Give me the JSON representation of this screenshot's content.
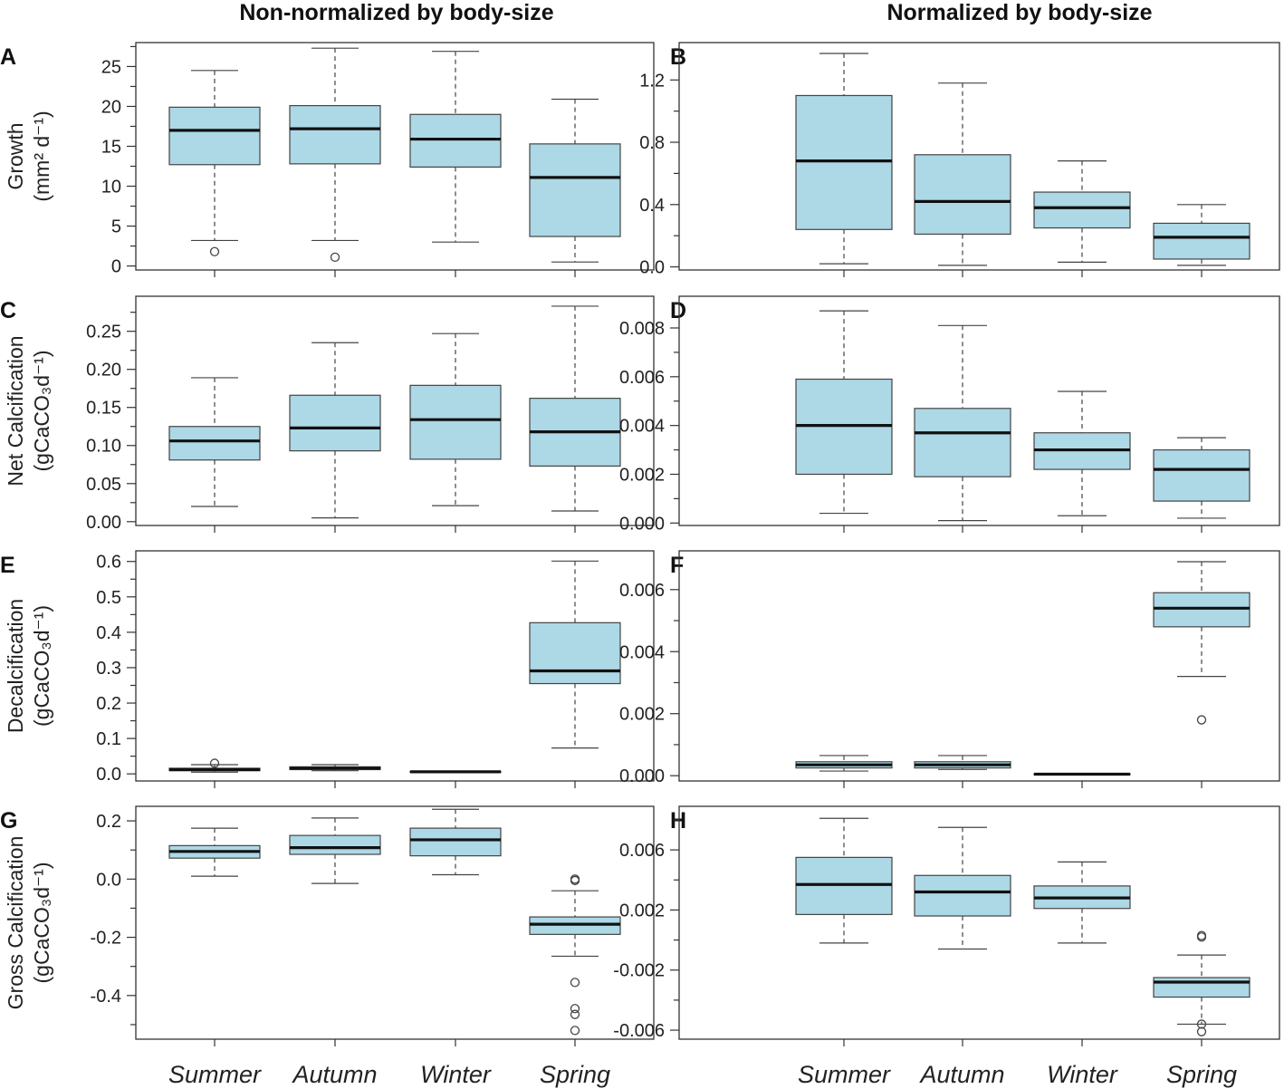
{
  "figure": {
    "col_titles": [
      "Non-normalized by body-size",
      "Normalized by body-size"
    ],
    "box_color": "#add8e6",
    "categories": [
      "Summer",
      "Autumn",
      "Winter",
      "Spring"
    ]
  },
  "chart_data": [
    {
      "type": "box",
      "panel": "A",
      "ylabel": "Growth",
      "ylabel_unit": "(mm² d⁻¹)",
      "ylim": [
        -0.5,
        28
      ],
      "yticks": [
        {
          "v": 0,
          "t": "0"
        },
        {
          "v": 5,
          "t": "5"
        },
        {
          "v": 10,
          "t": "10"
        },
        {
          "v": 15,
          "t": "15"
        },
        {
          "v": 20,
          "t": "20"
        },
        {
          "v": 25,
          "t": "25"
        }
      ],
      "boxes": [
        {
          "min": 3.2,
          "q1": 12.7,
          "median": 17.0,
          "q3": 19.9,
          "max": 24.5,
          "outliers": [
            1.8
          ]
        },
        {
          "min": 3.2,
          "q1": 12.8,
          "median": 17.2,
          "q3": 20.1,
          "max": 27.3,
          "outliers": [
            1.1
          ]
        },
        {
          "min": 3.0,
          "q1": 12.4,
          "median": 15.9,
          "q3": 19.0,
          "max": 26.9,
          "outliers": []
        },
        {
          "min": 0.5,
          "q1": 3.7,
          "median": 11.1,
          "q3": 15.3,
          "max": 20.9,
          "outliers": []
        }
      ]
    },
    {
      "type": "box",
      "panel": "B",
      "ylabel": "",
      "ylabel_unit": "",
      "ylim": [
        -0.02,
        1.44
      ],
      "yticks": [
        {
          "v": 0,
          "t": "0.0"
        },
        {
          "v": 0.4,
          "t": "0.4"
        },
        {
          "v": 0.8,
          "t": "0.8"
        },
        {
          "v": 1.2,
          "t": "1.2"
        }
      ],
      "boxes": [
        {
          "min": 0.02,
          "q1": 0.24,
          "median": 0.68,
          "q3": 1.1,
          "max": 1.37,
          "outliers": []
        },
        {
          "min": 0.01,
          "q1": 0.21,
          "median": 0.42,
          "q3": 0.72,
          "max": 1.18,
          "outliers": []
        },
        {
          "min": 0.03,
          "q1": 0.25,
          "median": 0.38,
          "q3": 0.48,
          "max": 0.68,
          "outliers": []
        },
        {
          "min": 0.01,
          "q1": 0.05,
          "median": 0.19,
          "q3": 0.28,
          "max": 0.4,
          "outliers": []
        }
      ]
    },
    {
      "type": "box",
      "panel": "C",
      "ylabel": "Net Calcification",
      "ylabel_unit": "(gCaCO₃d⁻¹)",
      "ylim": [
        -0.005,
        0.296
      ],
      "yticks": [
        {
          "v": 0,
          "t": "0.00"
        },
        {
          "v": 0.05,
          "t": "0.05"
        },
        {
          "v": 0.1,
          "t": "0.10"
        },
        {
          "v": 0.15,
          "t": "0.15"
        },
        {
          "v": 0.2,
          "t": "0.20"
        },
        {
          "v": 0.25,
          "t": "0.25"
        }
      ],
      "boxes": [
        {
          "min": 0.02,
          "q1": 0.081,
          "median": 0.106,
          "q3": 0.125,
          "max": 0.189,
          "outliers": []
        },
        {
          "min": 0.005,
          "q1": 0.093,
          "median": 0.123,
          "q3": 0.166,
          "max": 0.235,
          "outliers": []
        },
        {
          "min": 0.021,
          "q1": 0.082,
          "median": 0.134,
          "q3": 0.179,
          "max": 0.247,
          "outliers": []
        },
        {
          "min": 0.014,
          "q1": 0.073,
          "median": 0.118,
          "q3": 0.162,
          "max": 0.283,
          "outliers": []
        }
      ]
    },
    {
      "type": "box",
      "panel": "D",
      "ylabel": "",
      "ylabel_unit": "",
      "ylim": [
        -0.0001,
        0.0093
      ],
      "yticks": [
        {
          "v": 0,
          "t": "0.000"
        },
        {
          "v": 0.002,
          "t": "0.002"
        },
        {
          "v": 0.004,
          "t": "0.004"
        },
        {
          "v": 0.006,
          "t": "0.006"
        },
        {
          "v": 0.008,
          "t": "0.008"
        }
      ],
      "boxes": [
        {
          "min": 0.0004,
          "q1": 0.002,
          "median": 0.004,
          "q3": 0.0059,
          "max": 0.0087,
          "outliers": []
        },
        {
          "min": 0.0001,
          "q1": 0.0019,
          "median": 0.0037,
          "q3": 0.0047,
          "max": 0.0081,
          "outliers": []
        },
        {
          "min": 0.0003,
          "q1": 0.0022,
          "median": 0.003,
          "q3": 0.0037,
          "max": 0.0054,
          "outliers": []
        },
        {
          "min": 0.0002,
          "q1": 0.0009,
          "median": 0.0022,
          "q3": 0.003,
          "max": 0.0035,
          "outliers": []
        }
      ]
    },
    {
      "type": "box",
      "panel": "E",
      "ylabel": "Decalcification",
      "ylabel_unit": "(gCaCO₃d⁻¹)",
      "ylim": [
        -0.02,
        0.63
      ],
      "yticks": [
        {
          "v": 0,
          "t": "0.0"
        },
        {
          "v": 0.1,
          "t": "0.1"
        },
        {
          "v": 0.2,
          "t": "0.2"
        },
        {
          "v": 0.3,
          "t": "0.3"
        },
        {
          "v": 0.4,
          "t": "0.4"
        },
        {
          "v": 0.5,
          "t": "0.5"
        },
        {
          "v": 0.6,
          "t": "0.6"
        }
      ],
      "boxes": [
        {
          "min": 0.005,
          "q1": 0.009,
          "median": 0.012,
          "q3": 0.016,
          "max": 0.026,
          "outliers": [
            0.03
          ]
        },
        {
          "min": 0.009,
          "q1": 0.012,
          "median": 0.016,
          "q3": 0.02,
          "max": 0.026,
          "outliers": []
        },
        {
          "min": 0.004,
          "q1": 0.005,
          "median": 0.006,
          "q3": 0.007,
          "max": 0.008,
          "outliers": []
        },
        {
          "min": 0.073,
          "q1": 0.255,
          "median": 0.291,
          "q3": 0.427,
          "max": 0.601,
          "outliers": []
        }
      ]
    },
    {
      "type": "box",
      "panel": "F",
      "ylabel": "",
      "ylabel_unit": "",
      "ylim": [
        -0.00017,
        0.00725
      ],
      "yticks": [
        {
          "v": 0,
          "t": "0.000"
        },
        {
          "v": 0.002,
          "t": "0.002"
        },
        {
          "v": 0.004,
          "t": "0.004"
        },
        {
          "v": 0.006,
          "t": "0.006"
        }
      ],
      "boxes": [
        {
          "min": 0.00015,
          "q1": 0.00025,
          "median": 0.00035,
          "q3": 0.00045,
          "max": 0.00065,
          "outliers": []
        },
        {
          "min": 0.0002,
          "q1": 0.00025,
          "median": 0.00035,
          "q3": 0.00045,
          "max": 0.00065,
          "outliers": []
        },
        {
          "min": 3e-05,
          "q1": 4e-05,
          "median": 5e-05,
          "q3": 6e-05,
          "max": 7e-05,
          "outliers": []
        },
        {
          "min": 0.0032,
          "q1": 0.0048,
          "median": 0.0054,
          "q3": 0.0059,
          "max": 0.0069,
          "outliers": [
            0.0018
          ]
        }
      ]
    },
    {
      "type": "box",
      "panel": "G",
      "ylabel": "Gross Calcification",
      "ylabel_unit": "(gCaCO₃d⁻¹)",
      "ylim": [
        -0.55,
        0.25
      ],
      "yticks": [
        {
          "v": -0.4,
          "t": "-0.4"
        },
        {
          "v": -0.2,
          "t": "-0.2"
        },
        {
          "v": 0,
          "t": "0.0"
        },
        {
          "v": 0.2,
          "t": "0.2"
        }
      ],
      "boxes": [
        {
          "min": 0.01,
          "q1": 0.072,
          "median": 0.095,
          "q3": 0.115,
          "max": 0.175,
          "outliers": []
        },
        {
          "min": -0.015,
          "q1": 0.085,
          "median": 0.108,
          "q3": 0.15,
          "max": 0.21,
          "outliers": []
        },
        {
          "min": 0.015,
          "q1": 0.08,
          "median": 0.135,
          "q3": 0.175,
          "max": 0.24,
          "outliers": []
        },
        {
          "min": -0.265,
          "q1": -0.19,
          "median": -0.155,
          "q3": -0.13,
          "max": -0.04,
          "outliers": [
            0.0,
            -0.005,
            -0.355,
            -0.445,
            -0.465,
            -0.52
          ]
        }
      ]
    },
    {
      "type": "box",
      "panel": "H",
      "ylabel": "",
      "ylabel_unit": "",
      "ylim": [
        -0.0066,
        0.0089
      ],
      "yticks": [
        {
          "v": -0.006,
          "t": "-0.006"
        },
        {
          "v": -0.002,
          "t": "-0.002"
        },
        {
          "v": 0.002,
          "t": "0.002"
        },
        {
          "v": 0.006,
          "t": "0.006"
        }
      ],
      "boxes": [
        {
          "min": -0.0002,
          "q1": 0.0017,
          "median": 0.0037,
          "q3": 0.0055,
          "max": 0.0081,
          "outliers": []
        },
        {
          "min": -0.0006,
          "q1": 0.0016,
          "median": 0.0032,
          "q3": 0.0043,
          "max": 0.0075,
          "outliers": []
        },
        {
          "min": -0.0002,
          "q1": 0.0021,
          "median": 0.0028,
          "q3": 0.0036,
          "max": 0.0052,
          "outliers": []
        },
        {
          "min": -0.0056,
          "q1": -0.0038,
          "median": -0.0028,
          "q3": -0.0025,
          "max": -0.001,
          "outliers": [
            0.0003,
            0.0002,
            -0.0056,
            -0.0061
          ]
        }
      ]
    }
  ]
}
